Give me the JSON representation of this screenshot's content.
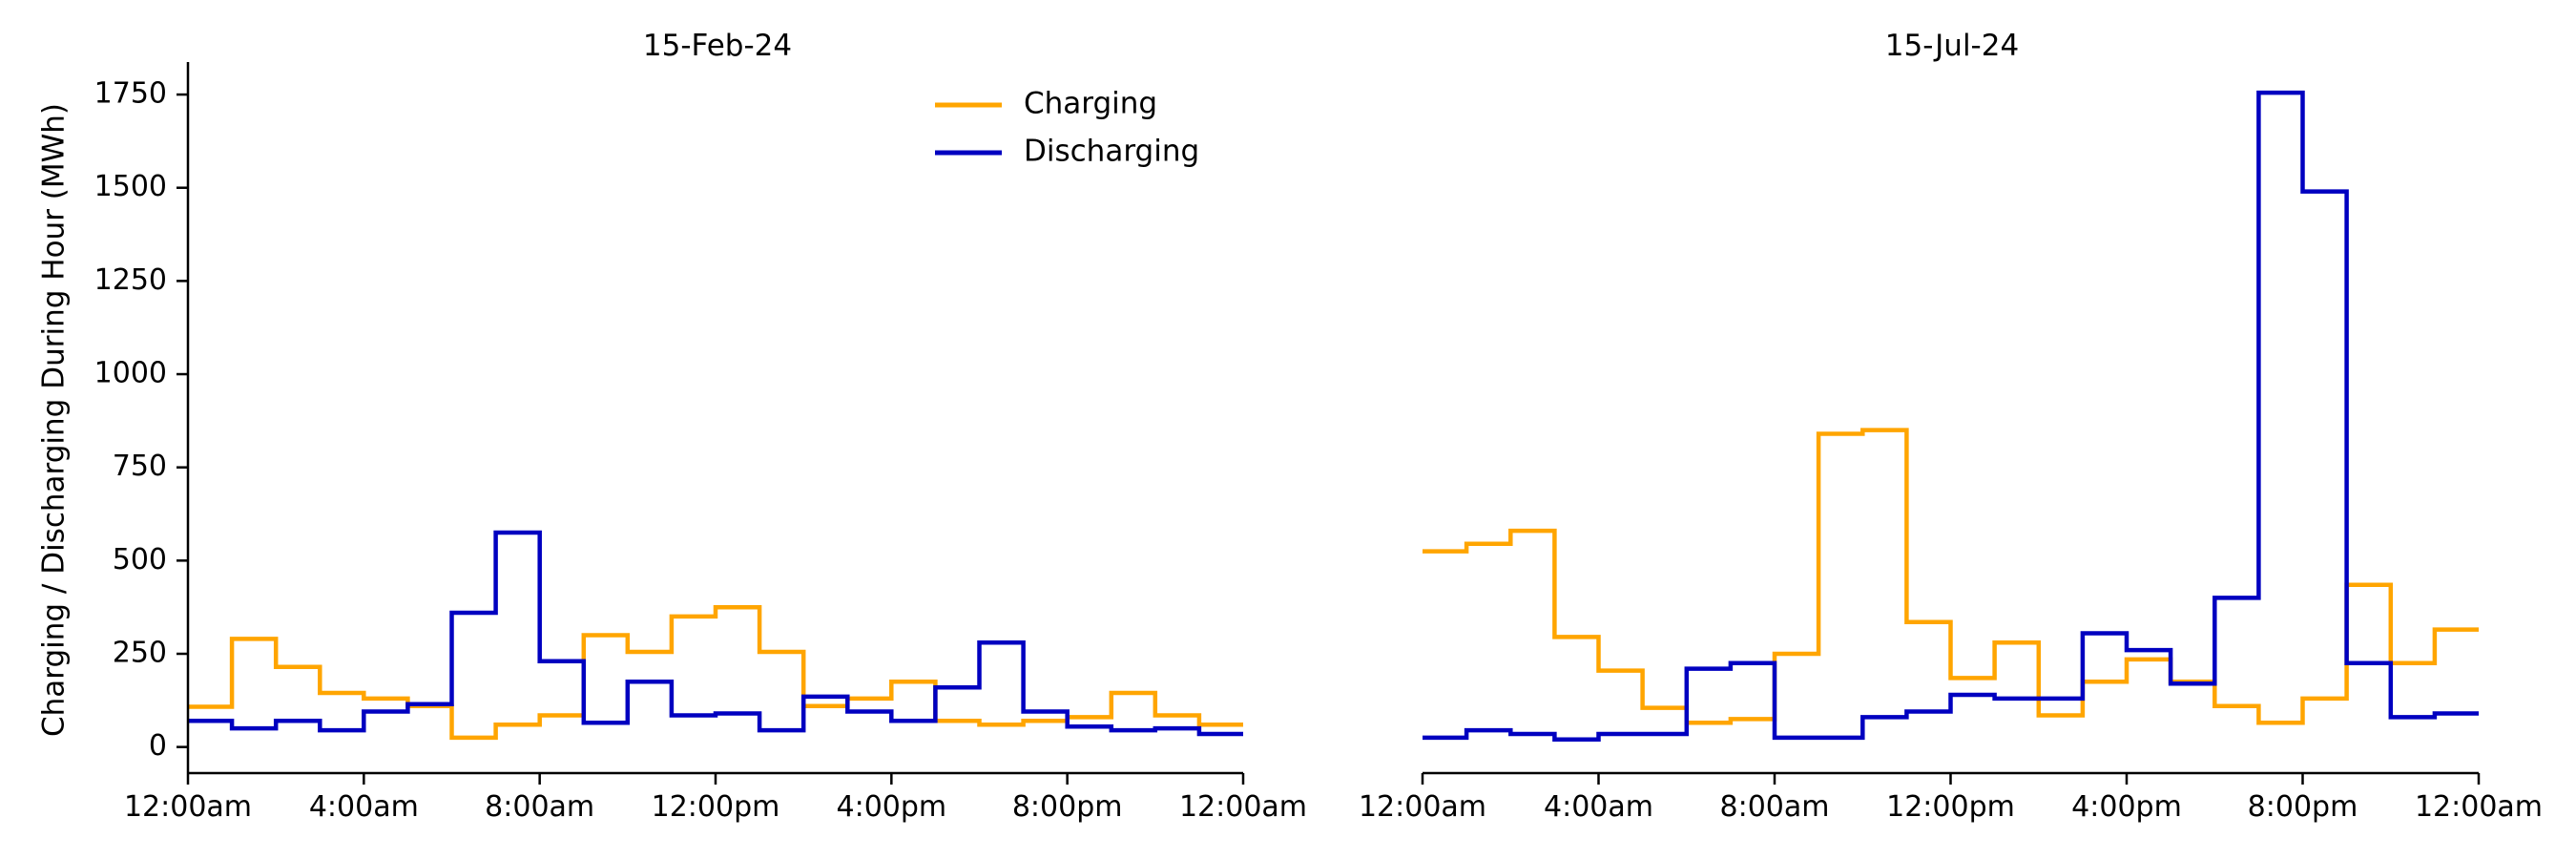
{
  "chart_data": [
    {
      "type": "line",
      "step": "post",
      "title": "15-Feb-24",
      "ylabel": "Charging / Discharging During Hour (MWh)",
      "xlabel": "",
      "xlim": [
        0,
        24
      ],
      "ylim": [
        -70,
        1850
      ],
      "xticks": [
        0,
        4,
        8,
        12,
        16,
        20,
        24
      ],
      "xtick_labels": [
        "12:00am",
        "4:00am",
        "8:00am",
        "12:00pm",
        "4:00pm",
        "8:00pm",
        "12:00am"
      ],
      "yticks": [
        0,
        250,
        500,
        750,
        1000,
        1250,
        1500,
        1750
      ],
      "ytick_labels": [
        "0",
        "250",
        "500",
        "750",
        "1000",
        "1250",
        "1500",
        "1750"
      ],
      "legend": "top-center",
      "grid": false,
      "series": [
        {
          "name": "Charging",
          "color": "#FFA500",
          "x": [
            0,
            1,
            2,
            3,
            4,
            5,
            6,
            7,
            8,
            9,
            10,
            11,
            12,
            13,
            14,
            15,
            16,
            17,
            18,
            19,
            20,
            21,
            22,
            23,
            24
          ],
          "values": [
            108,
            290,
            215,
            145,
            130,
            110,
            25,
            60,
            85,
            300,
            255,
            350,
            375,
            255,
            110,
            130,
            175,
            70,
            60,
            70,
            80,
            145,
            85,
            60,
            60
          ]
        },
        {
          "name": "Discharging",
          "color": "#0000C0",
          "x": [
            0,
            1,
            2,
            3,
            4,
            5,
            6,
            7,
            8,
            9,
            10,
            11,
            12,
            13,
            14,
            15,
            16,
            17,
            18,
            19,
            20,
            21,
            22,
            23,
            24
          ],
          "values": [
            70,
            50,
            70,
            45,
            95,
            115,
            360,
            575,
            230,
            65,
            175,
            85,
            90,
            45,
            135,
            95,
            70,
            160,
            280,
            95,
            55,
            45,
            50,
            35,
            35
          ]
        }
      ]
    },
    {
      "type": "line",
      "step": "post",
      "title": "15-Jul-24",
      "xlabel": "",
      "xlim": [
        0,
        24
      ],
      "ylim": [
        -70,
        1850
      ],
      "xticks": [
        0,
        4,
        8,
        12,
        16,
        20,
        24
      ],
      "xtick_labels": [
        "12:00am",
        "4:00am",
        "8:00am",
        "12:00pm",
        "4:00pm",
        "8:00pm",
        "12:00am"
      ],
      "grid": false,
      "series": [
        {
          "name": "Charging",
          "color": "#FFA500",
          "x": [
            0,
            1,
            2,
            3,
            4,
            5,
            6,
            7,
            8,
            9,
            10,
            11,
            12,
            13,
            14,
            15,
            16,
            17,
            18,
            19,
            20,
            21,
            22,
            23,
            24
          ],
          "values": [
            525,
            545,
            580,
            295,
            205,
            105,
            65,
            75,
            250,
            840,
            850,
            335,
            185,
            280,
            85,
            175,
            235,
            175,
            110,
            65,
            130,
            435,
            225,
            315,
            315
          ]
        },
        {
          "name": "Discharging",
          "color": "#0000C0",
          "x": [
            0,
            1,
            2,
            3,
            4,
            5,
            6,
            7,
            8,
            9,
            10,
            11,
            12,
            13,
            14,
            15,
            16,
            17,
            18,
            19,
            20,
            21,
            22,
            23,
            24
          ],
          "values": [
            25,
            45,
            35,
            20,
            35,
            35,
            210,
            225,
            25,
            25,
            80,
            95,
            140,
            130,
            130,
            305,
            260,
            170,
            400,
            1755,
            1490,
            225,
            80,
            90,
            90
          ]
        }
      ]
    }
  ]
}
